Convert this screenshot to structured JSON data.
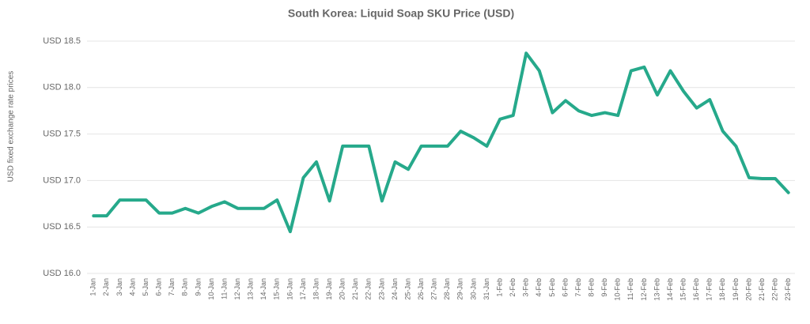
{
  "chart_data": {
    "type": "line",
    "title": "South Korea: Liquid Soap SKU Price (USD)",
    "y_label": "USD fixed exchange rate prices",
    "categories": [
      "1-Jan",
      "2-Jan",
      "3-Jan",
      "4-Jan",
      "5-Jan",
      "6-Jan",
      "7-Jan",
      "8-Jan",
      "9-Jan",
      "10-Jan",
      "11-Jan",
      "12-Jan",
      "13-Jan",
      "14-Jan",
      "15-Jan",
      "16-Jan",
      "17-Jan",
      "18-Jan",
      "19-Jan",
      "20-Jan",
      "21-Jan",
      "22-Jan",
      "23-Jan",
      "24-Jan",
      "25-Jan",
      "26-Jan",
      "27-Jan",
      "28-Jan",
      "29-Jan",
      "30-Jan",
      "31-Jan",
      "1-Feb",
      "2-Feb",
      "3-Feb",
      "4-Feb",
      "5-Feb",
      "6-Feb",
      "7-Feb",
      "8-Feb",
      "9-Feb",
      "10-Feb",
      "11-Feb",
      "12-Feb",
      "13-Feb",
      "14-Feb",
      "15-Feb",
      "16-Feb",
      "17-Feb",
      "18-Feb",
      "19-Feb",
      "20-Feb",
      "21-Feb",
      "22-Feb",
      "23-Feb"
    ],
    "values": [
      16.62,
      16.62,
      16.79,
      16.79,
      16.79,
      16.65,
      16.65,
      16.7,
      16.65,
      16.72,
      16.77,
      16.7,
      16.7,
      16.7,
      16.79,
      16.45,
      17.03,
      17.2,
      16.78,
      17.37,
      17.37,
      17.37,
      16.78,
      17.2,
      17.12,
      17.37,
      17.37,
      17.37,
      17.53,
      17.46,
      17.37,
      17.66,
      17.7,
      18.37,
      18.18,
      17.73,
      17.86,
      17.75,
      17.7,
      17.73,
      17.7,
      18.18,
      18.22,
      17.92,
      18.18,
      17.96,
      17.78,
      17.87,
      17.53,
      17.37,
      17.03,
      17.02,
      17.02,
      16.87
    ],
    "color": "#26a98b",
    "ylim": [
      16,
      18.5
    ],
    "yticks": [
      {
        "value": 16,
        "label": "USD 16.0"
      },
      {
        "value": 16.5,
        "label": "USD 16.5"
      },
      {
        "value": 17,
        "label": "USD 17.0"
      },
      {
        "value": 17.5,
        "label": "USD 17.5"
      },
      {
        "value": 18,
        "label": "USD 18.0"
      },
      {
        "value": 18.5,
        "label": "USD 18.5"
      }
    ],
    "grid": true
  }
}
